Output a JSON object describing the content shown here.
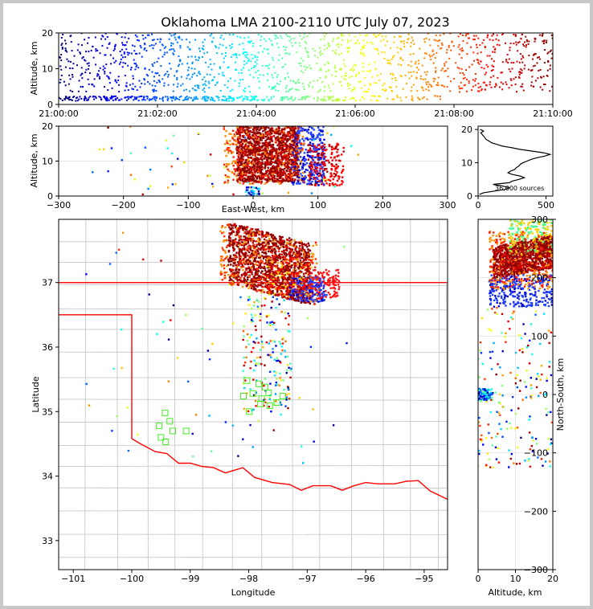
{
  "chart_data": [
    {
      "panel": "time-altitude",
      "type": "scatter",
      "title": "Oklahoma LMA 2100-2110 UTC July 07, 2023",
      "ylabel": "Altitude, km",
      "xlim": [
        "21:00:00",
        "21:10:00"
      ],
      "ylim": [
        0,
        20
      ],
      "x_tick_labels": [
        "21:00:00",
        "21:02:00",
        "21:04:00",
        "21:06:00",
        "21:08:00",
        "21:10:00"
      ],
      "y_tick_labels": [
        "0",
        "10",
        "20"
      ],
      "color_by": "time",
      "colormap": [
        "#00007f",
        "#0000ff",
        "#007fff",
        "#00ffff",
        "#7fff7f",
        "#ffff00",
        "#ff7f00",
        "#ff0000",
        "#7f0000"
      ],
      "description_of_points": "dense vertical columns of sources 4-20 km altitude across the whole 10-minute window, plus a continuous low-altitude band near 1-2 km from 21:00 to about 21:05"
    },
    {
      "panel": "east-west-altitude",
      "type": "scatter",
      "xlabel": "East-West, km",
      "ylabel": "Altitude, km",
      "xlim": [
        -300,
        300
      ],
      "ylim": [
        0,
        20
      ],
      "x_tick_labels": [
        "−300",
        "−200",
        "−100",
        "0",
        "100",
        "200",
        "300"
      ],
      "y_tick_labels": [
        "0",
        "10",
        "20"
      ],
      "cluster": {
        "x_range_km": [
          -50,
          140
        ],
        "core_x_range_km": [
          -30,
          75
        ],
        "alt_range_km": [
          3,
          20
        ]
      }
    },
    {
      "panel": "altitude-histogram",
      "type": "line",
      "xlim": [
        0,
        550
      ],
      "ylim": [
        0,
        21
      ],
      "x_tick_labels": [
        "0",
        "500"
      ],
      "y_tick_labels": [
        "0",
        "10",
        "20"
      ],
      "annotation": "36,000 sources",
      "profile": {
        "altitude_km": [
          0.5,
          1,
          1.5,
          2,
          2.5,
          3,
          3.5,
          4,
          4.5,
          5,
          5.5,
          6,
          6.5,
          7,
          7.5,
          8,
          8.5,
          9,
          9.5,
          10,
          10.5,
          11,
          11.5,
          12,
          12.5,
          13,
          13.5,
          14,
          14.5,
          15,
          15.5,
          16,
          16.5,
          17,
          17.5,
          18,
          18.5,
          19,
          19.5,
          20
        ],
        "sources": [
          10,
          40,
          120,
          200,
          230,
          180,
          110,
          230,
          250,
          300,
          340,
          310,
          250,
          220,
          240,
          270,
          280,
          300,
          310,
          330,
          360,
          390,
          430,
          490,
          530,
          480,
          400,
          310,
          250,
          180,
          140,
          100,
          80,
          60,
          50,
          40,
          30,
          20,
          40,
          15
        ]
      }
    },
    {
      "panel": "plan-view",
      "type": "scatter",
      "xlabel": "Longitude",
      "ylabel": "Latitude",
      "xlim": [
        -101.25,
        -94.6
      ],
      "ylim": [
        32.55,
        37.98
      ],
      "x_tick_labels": [
        "−101",
        "−100",
        "−99",
        "−98",
        "−97",
        "−96",
        "−95"
      ],
      "y_tick_labels": [
        "33",
        "34",
        "35",
        "36",
        "37"
      ],
      "storm_core": {
        "lon_range": [
          -98.5,
          -96.5
        ],
        "lat_range": [
          36.6,
          37.95
        ]
      },
      "stations": [
        {
          "lon": -99.43,
          "lat": 34.98
        },
        {
          "lon": -99.35,
          "lat": 34.85
        },
        {
          "lon": -99.53,
          "lat": 34.78
        },
        {
          "lon": -99.3,
          "lat": 34.7
        },
        {
          "lon": -99.07,
          "lat": 34.7
        },
        {
          "lon": -99.5,
          "lat": 34.6
        },
        {
          "lon": -99.42,
          "lat": 34.53
        },
        {
          "lon": -98.03,
          "lat": 35.48
        },
        {
          "lon": -97.83,
          "lat": 35.43
        },
        {
          "lon": -97.72,
          "lat": 35.38
        },
        {
          "lon": -98.09,
          "lat": 35.24
        },
        {
          "lon": -97.93,
          "lat": 35.28
        },
        {
          "lon": -97.78,
          "lat": 35.2
        },
        {
          "lon": -97.66,
          "lat": 35.29
        },
        {
          "lon": -97.42,
          "lat": 35.24
        },
        {
          "lon": -97.52,
          "lat": 35.14
        },
        {
          "lon": -97.64,
          "lat": 35.09
        },
        {
          "lon": -97.8,
          "lat": 35.12
        },
        {
          "lon": -97.99,
          "lat": 35.0
        }
      ],
      "boundary_colors": {
        "state_line": "#ff0000",
        "county_lines": "#c8c8c8"
      }
    },
    {
      "panel": "north-south-altitude",
      "type": "scatter",
      "xlabel": "Altitude, km",
      "ylabel": "North-South, km",
      "xlim": [
        0,
        20
      ],
      "ylim": [
        -300,
        300
      ],
      "x_tick_labels": [
        "0",
        "10",
        "20"
      ],
      "y_tick_labels": [
        "−300",
        "−200",
        "−100",
        "0",
        "100",
        "200",
        "300"
      ],
      "cluster": {
        "ns_range_km": [
          150,
          300
        ],
        "alt_range_km": [
          3,
          20
        ]
      }
    }
  ]
}
